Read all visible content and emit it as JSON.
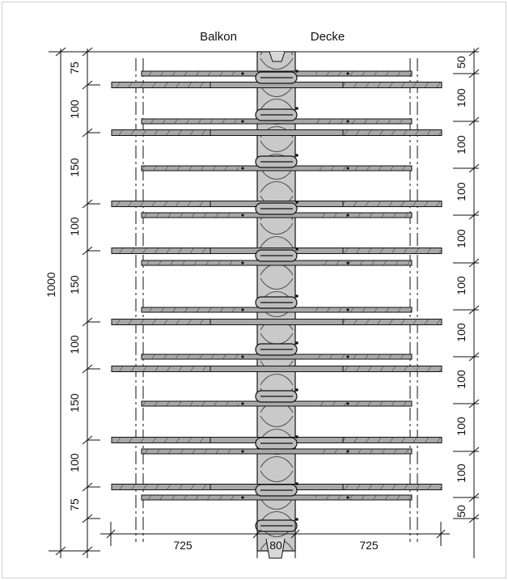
{
  "labels": {
    "left_zone": "Balkon",
    "right_zone": "Decke"
  },
  "dimensions": {
    "total_height": "1000",
    "left_spacings": [
      "75",
      "100",
      "150",
      "100",
      "150",
      "100",
      "150",
      "100",
      "75"
    ],
    "right_spacings": [
      "50",
      "100",
      "100",
      "100",
      "100",
      "100",
      "100",
      "100",
      "100",
      "100",
      "50"
    ],
    "bottom": [
      "725",
      "80",
      "725"
    ]
  },
  "colors": {
    "line": "#111111",
    "bar_fill": "#a8a8a8",
    "insulation_fill": "#c9c9c9",
    "frame": "#cfcfcf"
  }
}
